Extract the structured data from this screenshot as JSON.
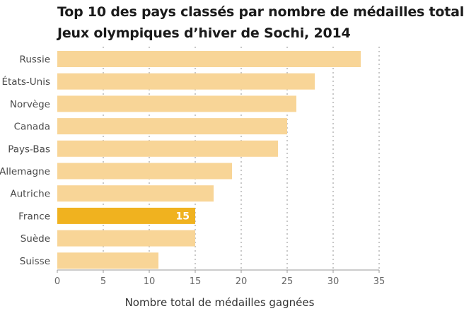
{
  "chart_data": {
    "type": "bar",
    "orientation": "horizontal",
    "title_lines": [
      "Top 10 des pays classés par nombre de médailles total",
      "Jeux olympiques d’hiver de Sochi, 2014"
    ],
    "categories": [
      "Russie",
      "États-Unis",
      "Norvège",
      "Canada",
      "Pays-Bas",
      "Allemagne",
      "Autriche",
      "France",
      "Suède",
      "Suisse"
    ],
    "values": [
      33,
      28,
      26,
      25,
      24,
      19,
      17,
      15,
      15,
      11
    ],
    "highlight": {
      "category": "France",
      "label": "15"
    },
    "xlabel": "Nombre total de médailles gagnées",
    "xlim": [
      0,
      35
    ],
    "xticks": [
      "0",
      "5",
      "10",
      "15",
      "20",
      "25",
      "30",
      "35"
    ],
    "grid": "vertical dotted",
    "colors": {
      "bar": "#f8d597",
      "highlight": "#f0b21f",
      "grid": "#c8c8c8",
      "axis": "#999999"
    }
  }
}
